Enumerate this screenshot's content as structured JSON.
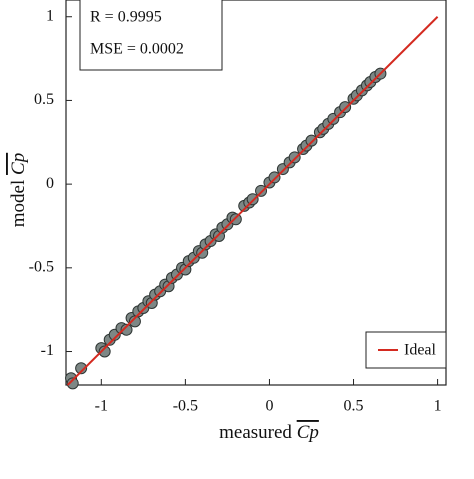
{
  "chart_data": {
    "type": "scatter",
    "x_label": "measured",
    "y_label": "model",
    "axis_symbol": "Cp",
    "stats": [
      "R = 0.9995",
      "MSE = 0.0002"
    ],
    "xlim": [
      -1.21,
      1.05
    ],
    "ylim": [
      -1.2,
      1.1
    ],
    "xticks": [
      -1,
      -0.5,
      0,
      0.5,
      1
    ],
    "yticks": [
      -1,
      -0.5,
      0,
      0.5,
      1
    ],
    "series": [
      {
        "color": "#7d8785",
        "x": [
          -1.18,
          -1.17,
          -1.12,
          -1.0,
          -0.98,
          -0.95,
          -0.92,
          -0.88,
          -0.85,
          -0.82,
          -0.8,
          -0.78,
          -0.75,
          -0.72,
          -0.7,
          -0.68,
          -0.65,
          -0.62,
          -0.6,
          -0.58,
          -0.55,
          -0.52,
          -0.5,
          -0.48,
          -0.45,
          -0.42,
          -0.4,
          -0.38,
          -0.35,
          -0.32,
          -0.3,
          -0.28,
          -0.25,
          -0.22,
          -0.2,
          -0.15,
          -0.12,
          -0.1,
          -0.05,
          0.0,
          0.03,
          0.08,
          0.12,
          0.15,
          0.2,
          0.22,
          0.25,
          0.3,
          0.32,
          0.35,
          0.38,
          0.42,
          0.45,
          0.5,
          0.52,
          0.55,
          0.58,
          0.6,
          0.63,
          0.66
        ],
        "values": [
          -1.16,
          -1.19,
          -1.1,
          -0.98,
          -1.0,
          -0.93,
          -0.9,
          -0.86,
          -0.87,
          -0.8,
          -0.82,
          -0.76,
          -0.74,
          -0.7,
          -0.71,
          -0.66,
          -0.64,
          -0.6,
          -0.61,
          -0.56,
          -0.54,
          -0.5,
          -0.51,
          -0.46,
          -0.44,
          -0.4,
          -0.41,
          -0.36,
          -0.34,
          -0.3,
          -0.31,
          -0.26,
          -0.24,
          -0.2,
          -0.21,
          -0.13,
          -0.11,
          -0.09,
          -0.04,
          0.01,
          0.04,
          0.09,
          0.13,
          0.16,
          0.21,
          0.23,
          0.26,
          0.31,
          0.33,
          0.36,
          0.39,
          0.43,
          0.46,
          0.51,
          0.53,
          0.56,
          0.59,
          0.61,
          0.64,
          0.66
        ]
      },
      {
        "name": "Ideal",
        "color": "#d42a20",
        "x": [
          -1.2,
          1
        ],
        "values": [
          -1.2,
          1
        ]
      }
    ]
  }
}
